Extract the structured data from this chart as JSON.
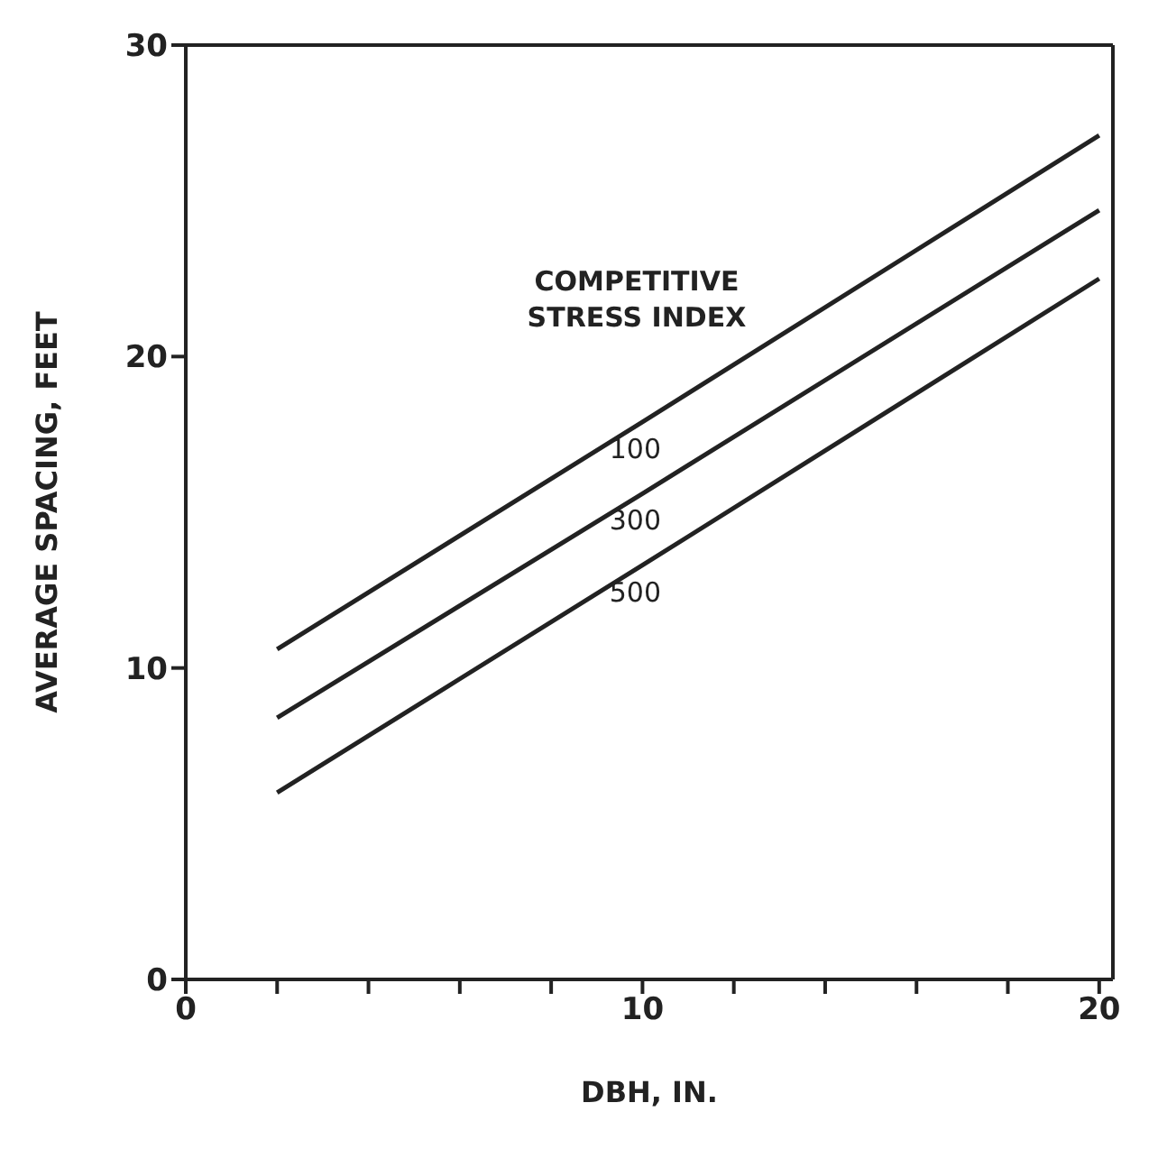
{
  "chart_data": {
    "type": "line",
    "xlabel": "DBH, IN.",
    "ylabel": "AVERAGE SPACING, FEET",
    "legend_title": "COMPETITIVE STRESS INDEX",
    "x": [
      2,
      10,
      20
    ],
    "series": [
      {
        "name": "100",
        "color": "#222222",
        "values": [
          10.6,
          17.9,
          27.1
        ]
      },
      {
        "name": "300",
        "color": "#222222",
        "values": [
          8.4,
          15.6,
          24.7
        ]
      },
      {
        "name": "500",
        "color": "#222222",
        "values": [
          6.0,
          13.3,
          22.5
        ]
      }
    ],
    "xlim": [
      0,
      20.3
    ],
    "ylim": [
      0,
      30
    ],
    "xticks": [
      0,
      {
        "value": 2,
        "label": null
      },
      {
        "value": 4,
        "label": null
      },
      {
        "value": 6,
        "label": null
      },
      {
        "value": 8,
        "label": null
      },
      10,
      {
        "value": 12,
        "label": null
      },
      {
        "value": 14,
        "label": null
      },
      {
        "value": 16,
        "label": null
      },
      {
        "value": 18,
        "label": null
      },
      20
    ],
    "yticks": [
      0,
      10,
      20,
      30
    ],
    "marker": "none",
    "line_style": "solid"
  }
}
